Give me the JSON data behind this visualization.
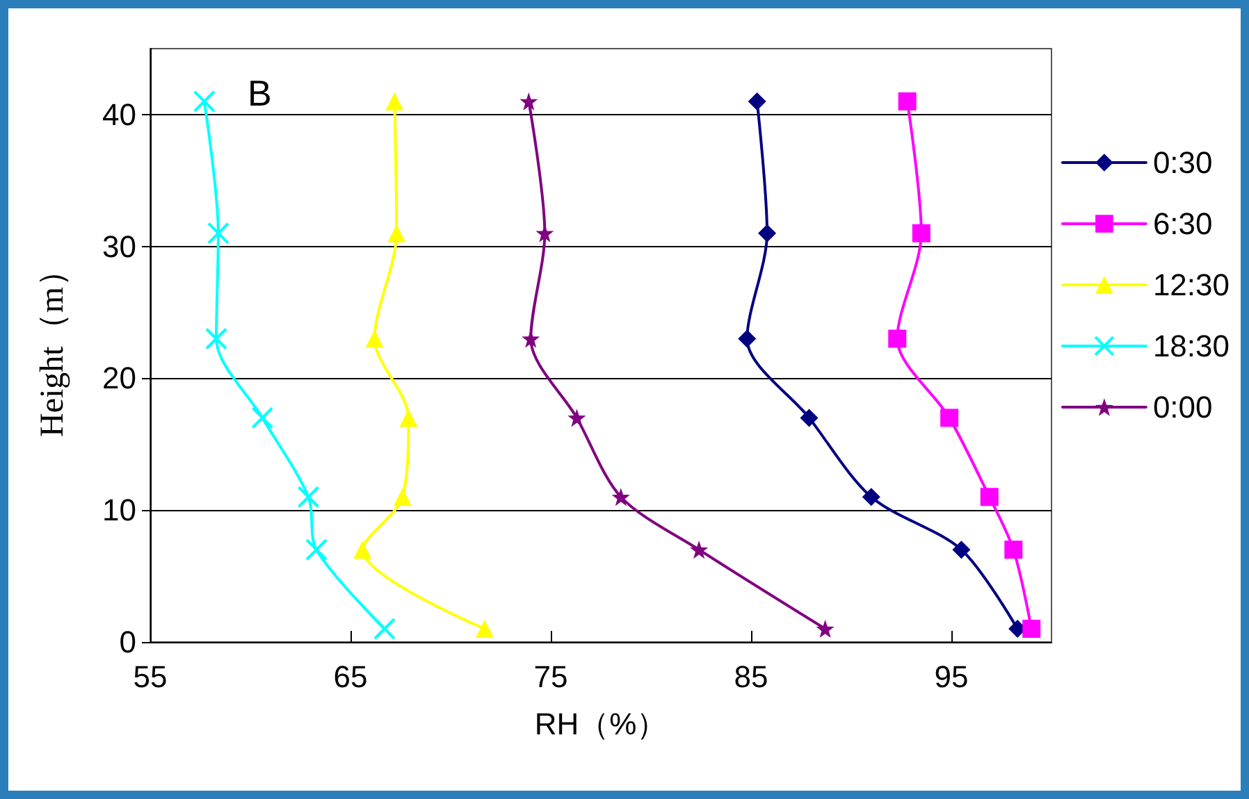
{
  "chart_data": {
    "type": "line",
    "xlabel": "RH（%）",
    "ylabel": "Height（m）",
    "annotations": [
      "B"
    ],
    "xlim": [
      55,
      100
    ],
    "xticks": [
      55,
      65,
      75,
      85,
      95
    ],
    "ylim": [
      0,
      45
    ],
    "yticks": [
      0,
      10,
      20,
      30,
      40
    ],
    "grid": "y",
    "legend": "right",
    "line_style": "solid",
    "series": [
      {
        "name": "0:30",
        "color": "#000080",
        "marker": "diamond",
        "x": [
          98.3,
          95.5,
          91.0,
          87.9,
          84.8,
          85.8,
          85.3
        ],
        "values": [
          1,
          7,
          11,
          17,
          23,
          31,
          41
        ]
      },
      {
        "name": "6:30",
        "color": "#ff00ff",
        "marker": "square",
        "x": [
          99.0,
          98.1,
          96.9,
          94.9,
          92.3,
          93.5,
          92.8
        ],
        "values": [
          1,
          7,
          11,
          17,
          23,
          31,
          41
        ]
      },
      {
        "name": "12:30",
        "color": "#ffff00",
        "marker": "triangle",
        "x": [
          71.7,
          65.6,
          67.6,
          67.9,
          66.2,
          67.3,
          67.2
        ],
        "values": [
          1,
          7,
          11,
          17,
          23,
          31,
          41
        ]
      },
      {
        "name": "18:30",
        "color": "#00ffff",
        "marker": "cross",
        "x": [
          66.7,
          63.3,
          62.9,
          60.6,
          58.3,
          58.4,
          57.7
        ],
        "values": [
          1,
          7,
          11,
          17,
          23,
          31,
          41
        ]
      },
      {
        "name": "0:00",
        "color": "#800080",
        "marker": "star",
        "x": [
          88.7,
          82.4,
          78.5,
          76.3,
          74.0,
          74.7,
          73.9
        ],
        "values": [
          1,
          7,
          11,
          17,
          23,
          31,
          41
        ]
      }
    ]
  }
}
